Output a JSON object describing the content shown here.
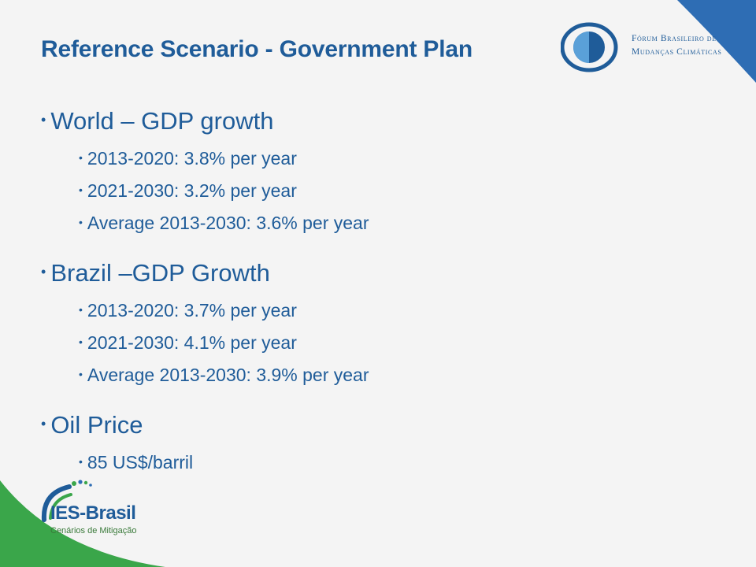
{
  "slide": {
    "title": "Reference Scenario - Government Plan",
    "bullet_glyph": "•",
    "sections": [
      {
        "heading": "World – GDP growth",
        "items": [
          "2013-2020: 3.8% per year",
          "2021-2030: 3.2% per year",
          "Average 2013-2030: 3.6% per year"
        ]
      },
      {
        "heading": "Brazil –GDP Growth",
        "items": [
          "2013-2020: 3.7% per year",
          "2021-2030: 4.1% per year",
          "Average 2013-2030: 3.9% per year"
        ]
      },
      {
        "heading": "Oil Price",
        "items": [
          "85 US$/barril"
        ]
      }
    ]
  },
  "logos": {
    "forum": {
      "line1": "Fórum Brasileiro de",
      "line2": "Mudanças Climáticas"
    },
    "ies": {
      "name": "IES-Brasil",
      "tagline": "Cenários de Mitigação"
    }
  },
  "colors": {
    "text_blue": "#1f5c99",
    "accent_blue": "#2e6db4",
    "accent_green": "#3aa64a",
    "background": "#f4f4f4"
  }
}
